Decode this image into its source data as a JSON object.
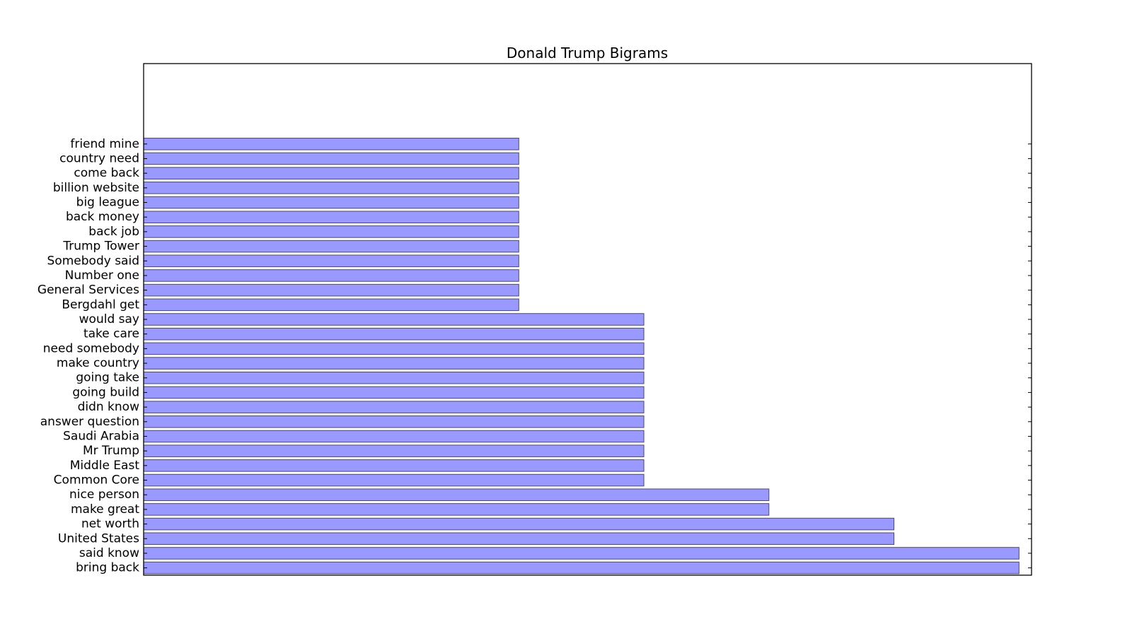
{
  "chart_data": {
    "type": "bar",
    "orientation": "horizontal",
    "title": "Donald Trump Bigrams",
    "xlabel": "",
    "ylabel": "",
    "categories": [
      "bring back",
      "said know",
      "United States",
      "net worth",
      "make great",
      "nice person",
      "Common Core",
      "Middle East",
      "Mr Trump",
      "Saudi Arabia",
      "answer question",
      "didn know",
      "going build",
      "going take",
      "make country",
      "need somebody",
      "take care",
      "would say",
      "Bergdahl get",
      "General Services",
      "Number one",
      "Somebody said",
      "Trump Tower",
      "back job",
      "back money",
      "big league",
      "billion website",
      "come back",
      "country need",
      "friend mine"
    ],
    "values": [
      7,
      7,
      6,
      6,
      5,
      5,
      4,
      4,
      4,
      4,
      4,
      4,
      4,
      4,
      4,
      4,
      4,
      4,
      3,
      3,
      3,
      3,
      3,
      3,
      3,
      3,
      3,
      3,
      3,
      3
    ],
    "xlim": [
      0,
      7.1
    ],
    "ylim": [
      -0.5,
      34.5
    ],
    "x_tick_labels_shown": false,
    "grid": false,
    "bar_color": "#9999ff",
    "bar_edge_color": "#4a4a6a"
  }
}
